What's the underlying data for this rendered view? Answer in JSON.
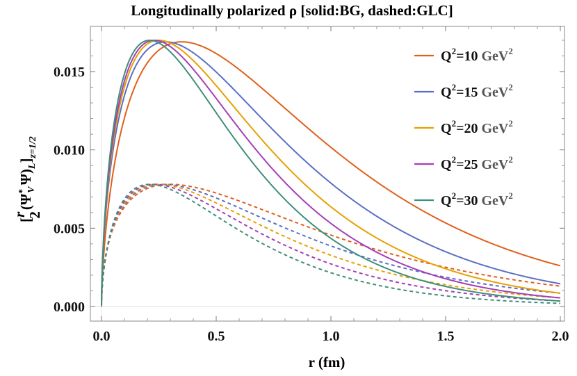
{
  "chart_data": {
    "type": "line",
    "title": "Longitudinally polarized ρ [solid:BG, dashed:GLC]",
    "xlabel": "r (fm)",
    "ylabel": "[r/2 (Ψ*_V Ψ)_L]_{z=1/2}",
    "ylabel_main": "[",
    "ylabel_frac_num": "r",
    "ylabel_frac_den": "2",
    "ylabel_psi": "(Ψ",
    "ylabel_star": "*",
    "ylabel_v": "V",
    "ylabel_psi2": "Ψ)",
    "ylabel_l": "L",
    "ylabel_close": "]",
    "ylabel_sub": "z=1/2",
    "xlim": [
      0,
      2
    ],
    "ylim": [
      -0.001,
      0.018
    ],
    "x_ticks": [
      "0.0",
      "0.5",
      "1.0",
      "1.5",
      "2.0"
    ],
    "x_tick_values": [
      0,
      0.5,
      1.0,
      1.5,
      2.0
    ],
    "y_ticks": [
      "0.000",
      "0.005",
      "0.010",
      "0.015"
    ],
    "y_tick_values": [
      0,
      0.005,
      0.01,
      0.015
    ],
    "legend_position": "top-right",
    "series": [
      {
        "name": "Q²=10 GeV²",
        "q2": "10",
        "color": "#e0601a",
        "solid": {
          "peak_x": 0.35,
          "peak_y": 0.0169,
          "end_y": 0.0026
        },
        "dashed": {
          "peak_x": 0.3,
          "peak_y": 0.0078,
          "end_y": 0.0013
        }
      },
      {
        "name": "Q²=15 GeV²",
        "q2": "15",
        "color": "#5b6fc4",
        "solid": {
          "peak_x": 0.28,
          "peak_y": 0.0169,
          "end_y": 0.00145
        },
        "dashed": {
          "peak_x": 0.27,
          "peak_y": 0.0078,
          "end_y": 0.00085
        }
      },
      {
        "name": "Q²=20 GeV²",
        "q2": "20",
        "color": "#e8a000",
        "solid": {
          "peak_x": 0.25,
          "peak_y": 0.017,
          "end_y": 0.00085
        },
        "dashed": {
          "peak_x": 0.25,
          "peak_y": 0.0078,
          "end_y": 0.00055
        }
      },
      {
        "name": "Q²=25 GeV²",
        "q2": "25",
        "color": "#a33fb8",
        "solid": {
          "peak_x": 0.23,
          "peak_y": 0.017,
          "end_y": 0.00055
        },
        "dashed": {
          "peak_x": 0.23,
          "peak_y": 0.0078,
          "end_y": 0.00035
        }
      },
      {
        "name": "Q²=30 GeV²",
        "q2": "30",
        "color": "#3f8f7a",
        "solid": {
          "peak_x": 0.21,
          "peak_y": 0.017,
          "end_y": 0.00035
        },
        "dashed": {
          "peak_x": 0.21,
          "peak_y": 0.0078,
          "end_y": 0.0002
        }
      }
    ],
    "legend": {
      "q_prefix": "Q",
      "sq": "2",
      "eq": "=",
      "unit": "GeV",
      "unit_sq": "2"
    }
  }
}
